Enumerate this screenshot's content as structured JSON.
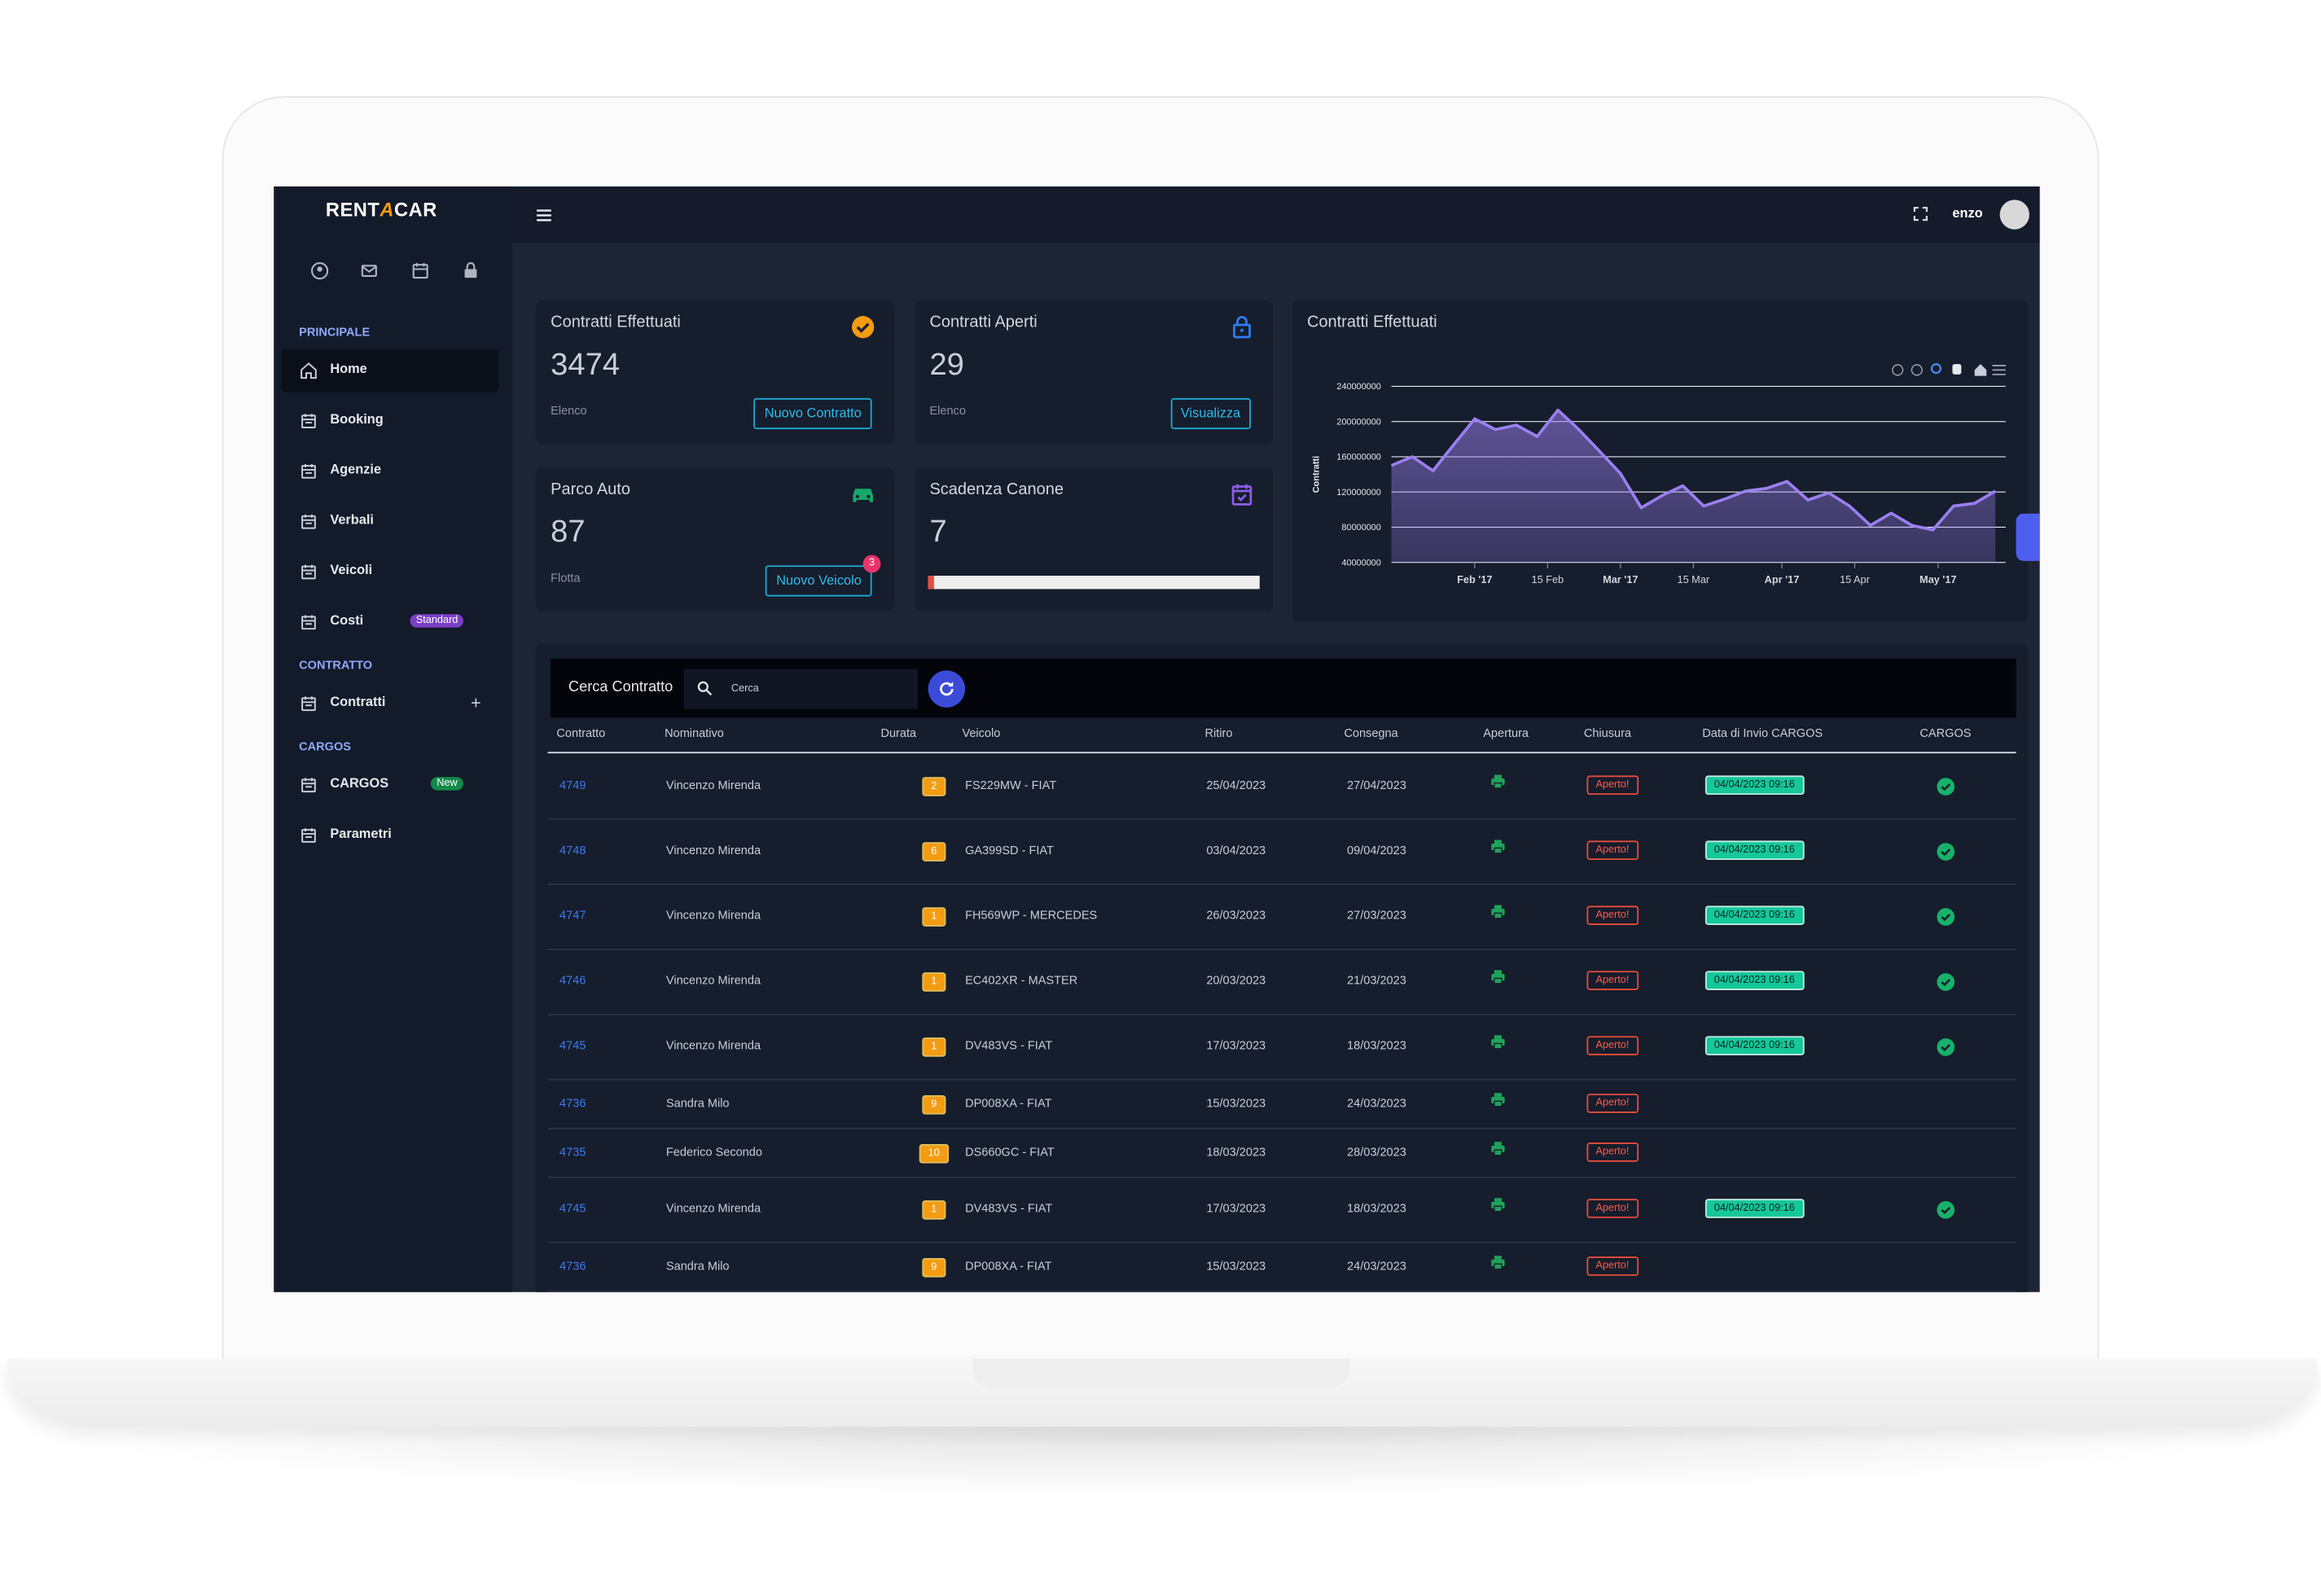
{
  "sidebar": {
    "brand_parts": [
      "RENT",
      "A",
      "CAR"
    ],
    "sections": [
      {
        "title": "PRINCIPALE",
        "items": [
          {
            "label": "Home"
          },
          {
            "label": "Booking"
          },
          {
            "label": "Agenzie"
          },
          {
            "label": "Verbali"
          },
          {
            "label": "Veicoli"
          },
          {
            "label": "Costi",
            "badge": "Standard"
          }
        ]
      },
      {
        "title": "CONTRATTO",
        "items": [
          {
            "label": "Contratti"
          }
        ]
      },
      {
        "title": "CARGOS",
        "items": [
          {
            "label": "CARGOS",
            "badge": "New"
          },
          {
            "label": "Parametri"
          }
        ]
      }
    ]
  },
  "topbar": {
    "user": "enzo"
  },
  "cards": [
    {
      "title": "Contratti Effettuati",
      "value": 3474,
      "caption": "Elenco",
      "button": "Nuovo Contratto"
    },
    {
      "title": "Contratti Aperti",
      "value": 29,
      "caption": "Elenco",
      "button": "Visualizza"
    },
    {
      "title": "Parco Auto",
      "value": 87,
      "caption": "Flotta",
      "button": "Nuovo Veicolo",
      "badge": 3
    },
    {
      "title": "Scadenza Canone",
      "value": 7
    }
  ],
  "chart_data": {
    "type": "area",
    "title": "Contratti Effettuati",
    "y_label": "Contratti",
    "color": "#9b7ff0",
    "x": [
      "2017-01-16",
      "2017-01-20",
      "2017-01-24",
      "2017-01-28",
      "2017-02-01",
      "2017-02-05",
      "2017-02-09",
      "2017-02-13",
      "2017-02-17",
      "2017-02-21",
      "2017-02-25",
      "2017-03-01",
      "2017-03-05",
      "2017-03-09",
      "2017-03-13",
      "2017-03-17",
      "2017-03-21",
      "2017-03-25",
      "2017-03-29",
      "2017-04-02",
      "2017-04-06",
      "2017-04-10",
      "2017-04-14",
      "2017-04-18",
      "2017-04-22",
      "2017-04-26",
      "2017-04-30",
      "2017-05-04",
      "2017-05-08",
      "2017-05-12"
    ],
    "values": [
      150000000,
      160000000,
      144000000,
      174000000,
      203000000,
      191000000,
      196000000,
      183000000,
      213000000,
      191000000,
      166000000,
      141000000,
      102000000,
      116000000,
      127000000,
      104000000,
      112000000,
      121000000,
      124000000,
      132000000,
      111000000,
      119000000,
      104000000,
      82000000,
      96000000,
      82000000,
      77000000,
      104000000,
      107000000,
      121000000
    ],
    "xlim": [
      "2017-01-16",
      "2017-05-14"
    ],
    "xticks": [
      {
        "value": "2017-02-01",
        "label": "Feb '17"
      },
      {
        "value": "2017-02-15",
        "label": "15 Feb"
      },
      {
        "value": "2017-03-01",
        "label": "Mar '17"
      },
      {
        "value": "2017-03-15",
        "label": "15 Mar"
      },
      {
        "value": "2017-04-01",
        "label": "Apr '17"
      },
      {
        "value": "2017-04-15",
        "label": "15 Apr"
      },
      {
        "value": "2017-05-01",
        "label": "May '17"
      }
    ],
    "ylim": [
      40000000,
      240000000
    ],
    "yticks": [
      40000000,
      80000000,
      120000000,
      160000000,
      200000000,
      240000000
    ],
    "grid": true
  },
  "table": {
    "title": "Cerca Contratto",
    "search_placeholder": "Cerca",
    "columns": [
      "Contratto",
      "Nominativo",
      "Durata",
      "Veicolo",
      "Ritiro",
      "Consegna",
      "Apertura",
      "Chiusura",
      "Data di Invio CARGOS",
      "CARGOS"
    ],
    "rows": [
      {
        "contratto": "4749",
        "nominativo": "Vincenzo Mirenda",
        "durata": 2,
        "veicolo": "FS229MW - FIAT",
        "ritiro": "25/04/2023",
        "consegna": "27/04/2023",
        "chiusura": "Aperto!",
        "cargos": "04/04/2023 09:16"
      },
      {
        "contratto": "4748",
        "nominativo": "Vincenzo Mirenda",
        "durata": 6,
        "veicolo": "GA399SD - FIAT",
        "ritiro": "03/04/2023",
        "consegna": "09/04/2023",
        "chiusura": "Aperto!",
        "cargos": "04/04/2023 09:16"
      },
      {
        "contratto": "4747",
        "nominativo": "Vincenzo Mirenda",
        "durata": 1,
        "veicolo": "FH569WP - MERCEDES",
        "ritiro": "26/03/2023",
        "consegna": "27/03/2023",
        "chiusura": "Aperto!",
        "cargos": "04/04/2023 09:16"
      },
      {
        "contratto": "4746",
        "nominativo": "Vincenzo Mirenda",
        "durata": 1,
        "veicolo": "EC402XR - MASTER",
        "ritiro": "20/03/2023",
        "consegna": "21/03/2023",
        "chiusura": "Aperto!",
        "cargos": "04/04/2023 09:16"
      },
      {
        "contratto": "4745",
        "nominativo": "Vincenzo Mirenda",
        "durata": 1,
        "veicolo": "DV483VS - FIAT",
        "ritiro": "17/03/2023",
        "consegna": "18/03/2023",
        "chiusura": "Aperto!",
        "cargos": "04/04/2023 09:16"
      },
      {
        "contratto": "4736",
        "nominativo": "Sandra Milo",
        "durata": 9,
        "veicolo": "DP008XA - FIAT",
        "ritiro": "15/03/2023",
        "consegna": "24/03/2023",
        "chiusura": "Aperto!"
      },
      {
        "contratto": "4735",
        "nominativo": "Federico Secondo",
        "durata": 10,
        "veicolo": "DS660GC - FIAT",
        "ritiro": "18/03/2023",
        "consegna": "28/03/2023",
        "chiusura": "Aperto!"
      },
      {
        "contratto": "4745",
        "nominativo": "Vincenzo Mirenda",
        "durata": 1,
        "veicolo": "DV483VS - FIAT",
        "ritiro": "17/03/2023",
        "consegna": "18/03/2023",
        "chiusura": "Aperto!",
        "cargos": "04/04/2023 09:16"
      },
      {
        "contratto": "4736",
        "nominativo": "Sandra Milo",
        "durata": 9,
        "veicolo": "DP008XA - FIAT",
        "ritiro": "15/03/2023",
        "consegna": "24/03/2023",
        "chiusura": "Aperto!"
      }
    ]
  }
}
